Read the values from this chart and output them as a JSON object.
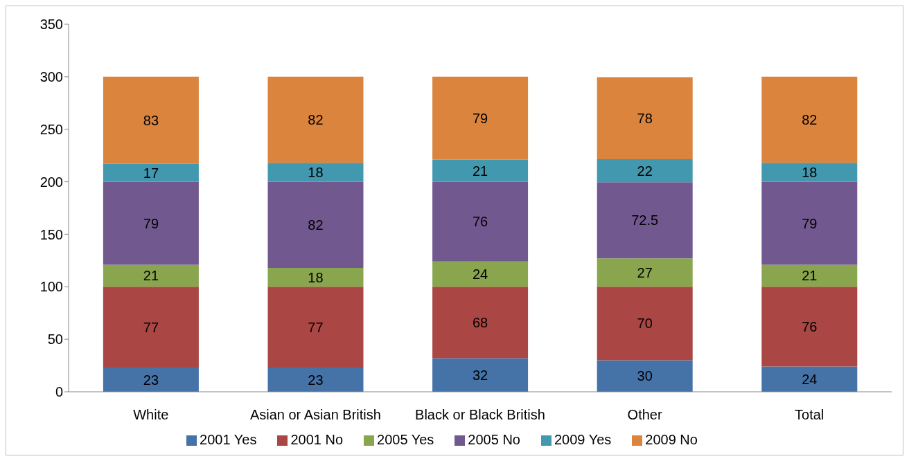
{
  "chart_data": {
    "type": "bar",
    "stacked": true,
    "categories": [
      "White",
      "Asian or Asian British",
      "Black or Black British",
      "Other",
      "Total"
    ],
    "series": [
      {
        "name": "2001 Yes",
        "color": "#4572a7",
        "values": [
          23,
          23,
          32,
          30,
          24
        ]
      },
      {
        "name": "2001 No",
        "color": "#aa4643",
        "values": [
          77,
          77,
          68,
          70,
          76
        ]
      },
      {
        "name": "2005 Yes",
        "color": "#89a54e",
        "values": [
          21,
          18,
          24,
          27,
          21
        ]
      },
      {
        "name": "2005 No",
        "color": "#71588f",
        "values": [
          79,
          82,
          76,
          72.5,
          79
        ]
      },
      {
        "name": "2009 Yes",
        "color": "#4198af",
        "values": [
          17,
          18,
          21,
          22,
          18
        ]
      },
      {
        "name": "2009 No",
        "color": "#db843d",
        "values": [
          83,
          82,
          79,
          78,
          82
        ]
      }
    ],
    "ylim": [
      0,
      350
    ],
    "yticks": [
      0,
      50,
      100,
      150,
      200,
      250,
      300,
      350
    ],
    "grid": false,
    "legend": "bottom",
    "data_labels": true
  }
}
